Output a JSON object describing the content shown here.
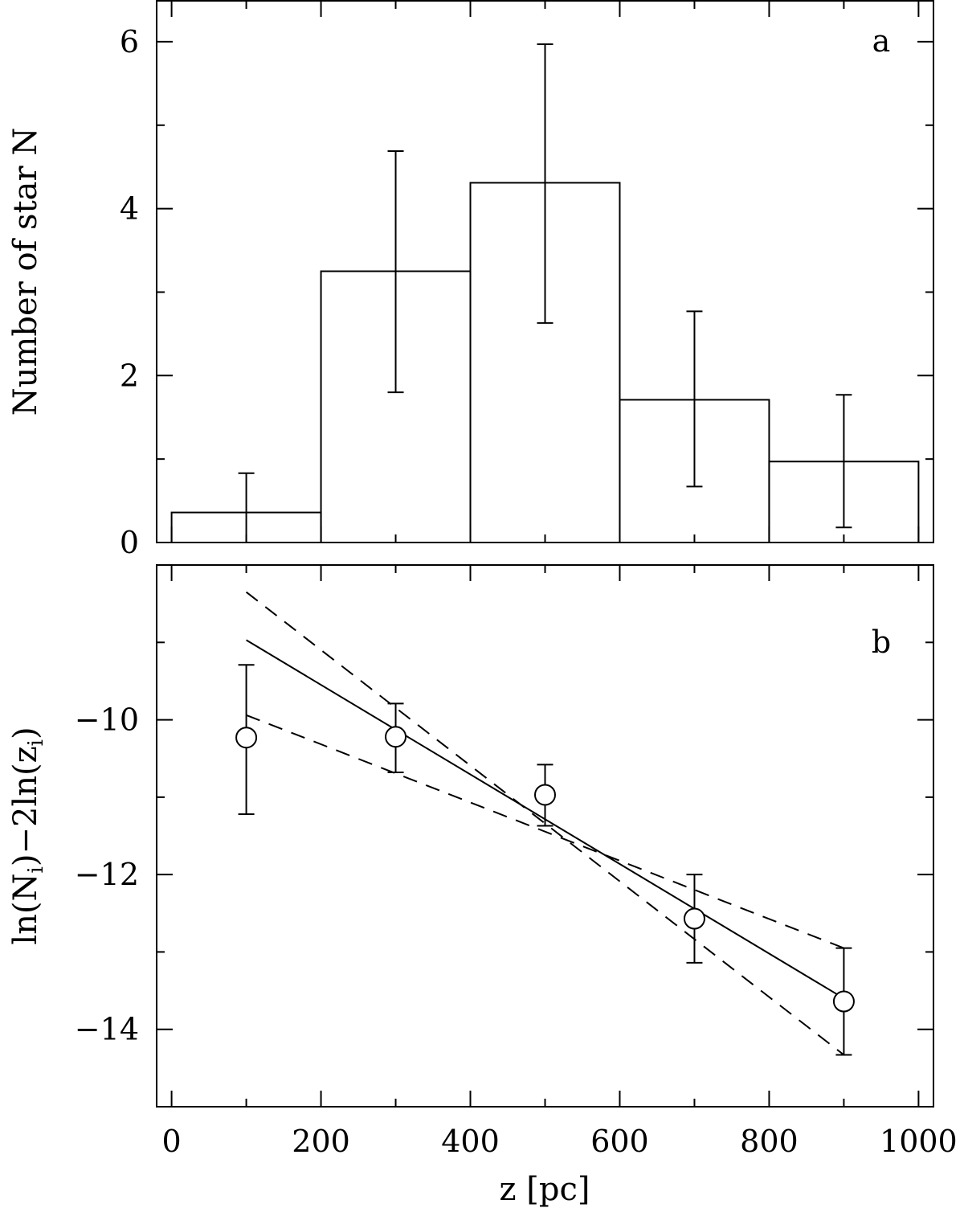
{
  "chart_data": [
    {
      "panel": "a",
      "type": "bar",
      "panel_label": "a",
      "ylabel": "Number of star N",
      "xlabel": "",
      "xlim": [
        -20,
        1020
      ],
      "ylim": [
        0,
        6.5
      ],
      "yticks": [
        0,
        2,
        4,
        6
      ],
      "ytick_labels": [
        "0",
        "2",
        "4",
        "6"
      ],
      "ylabel_minor_step": 1,
      "xticks": [
        0,
        200,
        400,
        600,
        800,
        1000
      ],
      "bin_edges": [
        0,
        200,
        400,
        600,
        800,
        1000
      ],
      "bin_centers": [
        100,
        300,
        500,
        700,
        900
      ],
      "values": [
        0.36,
        3.25,
        4.31,
        1.71,
        0.97
      ],
      "error_low": [
        0.0,
        1.8,
        2.63,
        0.67,
        0.18
      ],
      "error_high": [
        0.83,
        4.69,
        5.97,
        2.77,
        1.77
      ],
      "grid": false
    },
    {
      "panel": "b",
      "type": "scatter",
      "panel_label": "b",
      "xlabel": "z [pc]",
      "ylabel_parts": {
        "ln1": "ln(N",
        "sub1": "i",
        "mid": ")−2ln(z",
        "sub2": "i",
        "end": ")"
      },
      "xlim": [
        -20,
        1020
      ],
      "ylim": [
        -15,
        -8
      ],
      "yticks": [
        -14,
        -12,
        -10
      ],
      "ytick_labels": [
        "−14",
        "−12",
        "−10"
      ],
      "xticks": [
        0,
        200,
        400,
        600,
        800,
        1000
      ],
      "xtick_labels": [
        "0",
        "200",
        "400",
        "600",
        "800",
        "1000"
      ],
      "points": {
        "x": [
          100,
          300,
          500,
          700,
          900
        ],
        "y": [
          -10.23,
          -10.22,
          -10.97,
          -12.57,
          -13.64
        ],
        "error_low": [
          -11.22,
          -10.68,
          -11.37,
          -13.14,
          -14.33
        ],
        "error_high": [
          -9.29,
          -9.79,
          -10.58,
          -12.0,
          -12.95
        ]
      },
      "fit_line": {
        "style": "solid",
        "x": [
          100,
          900
        ],
        "y": [
          -8.97,
          -13.6
        ]
      },
      "bound_lines": [
        {
          "style": "dashed",
          "x": [
            100,
            900
          ],
          "y": [
            -8.35,
            -14.33
          ]
        },
        {
          "style": "dashed",
          "x": [
            100,
            900
          ],
          "y": [
            -9.94,
            -12.95
          ]
        }
      ],
      "grid": false
    }
  ]
}
